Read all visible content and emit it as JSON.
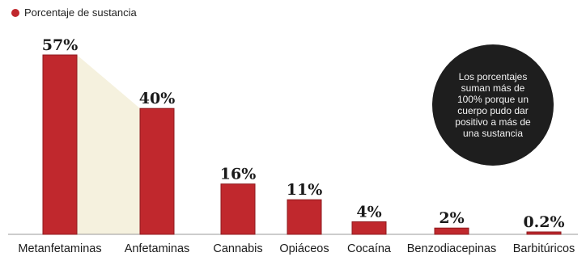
{
  "legend": {
    "label": "Porcentaje de sustancia",
    "color": "#c0282d"
  },
  "note": {
    "text": "Los porcentajes suman más de 100% porque un cuerpo pudo dar positivo a más de una sustancia"
  },
  "colors": {
    "bar": "#c0282d",
    "bar_dark": "#8e1a1e",
    "axis": "#999999",
    "highlight": "#f5f1de",
    "note_bg": "#1e1e1e"
  },
  "chart_data": {
    "type": "bar",
    "title": "",
    "xlabel": "",
    "ylabel": "",
    "ylim": [
      0,
      60
    ],
    "grid": false,
    "legend_position": "top-left",
    "categories": [
      "Metanfetaminas",
      "Anfetaminas",
      "Cannabis",
      "Opiáceos",
      "Cocaína",
      "Benzodiacepinas",
      "Barbitúricos"
    ],
    "values": [
      57,
      40,
      16,
      11,
      4,
      2,
      0.2
    ],
    "data_labels": [
      "57%",
      "40%",
      "16%",
      "11%",
      "4%",
      "2%",
      "0.2%"
    ]
  }
}
